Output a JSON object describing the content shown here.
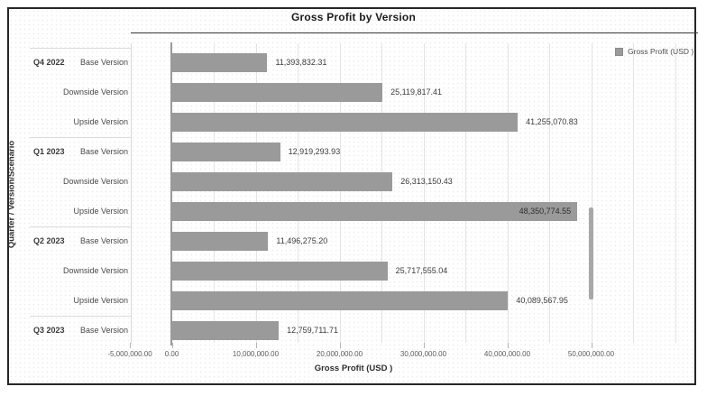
{
  "title": "Gross Profit by Version",
  "legend": {
    "label": "Gross Profit (USD )",
    "swatch_color": "#9a9a9a"
  },
  "colors": {
    "bar": "#9a9a9a",
    "frame_border": "#262626",
    "zero_axis": "#9a9a9a"
  },
  "scrollbar": {
    "visible": true
  },
  "chart_data": {
    "type": "bar",
    "orientation": "horizontal",
    "title": "Gross Profit by Version",
    "xlabel": "Gross Profit (USD )",
    "ylabel": "Quarter / Version/Scenario",
    "legend_entries": [
      "Gross Profit (USD )"
    ],
    "legend_position": "top-right",
    "grid": true,
    "xlim": [
      -5000000,
      63000000
    ],
    "x_ticks": [
      {
        "value": -5000000,
        "label": "-5,000,000.00"
      },
      {
        "value": 0,
        "label": "0.00"
      },
      {
        "value": 10000000,
        "label": "10,000,000.00"
      },
      {
        "value": 20000000,
        "label": "20,000,000.00"
      },
      {
        "value": 30000000,
        "label": "30,000,000.00"
      },
      {
        "value": 40000000,
        "label": "40,000,000.00"
      },
      {
        "value": 50000000,
        "label": "50,000,000.00"
      }
    ],
    "groups": [
      {
        "label": "Q4 2022",
        "bars": [
          {
            "category": "Base Version",
            "value": 11393832.31,
            "value_label": "11,393,832.31"
          },
          {
            "category": "Downside Version",
            "value": 25119817.41,
            "value_label": "25,119,817.41"
          },
          {
            "category": "Upside Version",
            "value": 41255070.83,
            "value_label": "41,255,070.83"
          }
        ]
      },
      {
        "label": "Q1 2023",
        "bars": [
          {
            "category": "Base Version",
            "value": 12919293.93,
            "value_label": "12,919,293.93"
          },
          {
            "category": "Downside Version",
            "value": 26313150.43,
            "value_label": "26,313,150.43"
          },
          {
            "category": "Upside Version",
            "value": 48350774.55,
            "value_label": "48,350,774.55",
            "value_label_inside": true
          }
        ]
      },
      {
        "label": "Q2 2023",
        "bars": [
          {
            "category": "Base Version",
            "value": 11496275.2,
            "value_label": "11,496,275.20"
          },
          {
            "category": "Downside Version",
            "value": 25717555.04,
            "value_label": "25,717,555.04"
          },
          {
            "category": "Upside Version",
            "value": 40089567.95,
            "value_label": "40,089,567.95"
          }
        ]
      },
      {
        "label": "Q3 2023",
        "bars": [
          {
            "category": "Base Version",
            "value": 12759711.71,
            "value_label": "12,759,711.71"
          }
        ]
      }
    ]
  }
}
